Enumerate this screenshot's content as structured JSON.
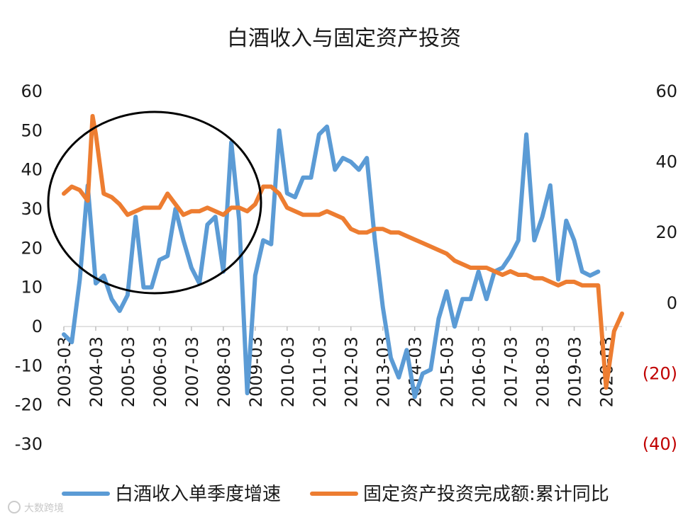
{
  "chart_data": {
    "type": "line",
    "title": "白酒收入与固定资产投资",
    "x_tick_labels": [
      "2003-03",
      "2004-03",
      "2005-03",
      "2006-03",
      "2007-03",
      "2008-03",
      "2009-03",
      "2010-03",
      "2011-03",
      "2012-03",
      "2013-03",
      "2014-03",
      "2015-03",
      "2016-03",
      "2017-03",
      "2018-03",
      "2019-03",
      "2020-03"
    ],
    "y_left": {
      "ticks": [
        "60",
        "50",
        "40",
        "30",
        "20",
        "10",
        "0",
        "-10",
        "-20",
        "-30"
      ],
      "ylim": [
        -30,
        60
      ]
    },
    "y_right": {
      "ticks": [
        "60",
        "40",
        "20",
        "0",
        "(20)",
        "(40)"
      ],
      "ylim": [
        -40,
        60
      ]
    },
    "series": [
      {
        "name": "白酒收入单季度增速",
        "axis": "left",
        "color": "#5b9bd5",
        "points": [
          [
            2003.0,
            -2
          ],
          [
            2003.25,
            -4
          ],
          [
            2003.5,
            12
          ],
          [
            2003.75,
            36
          ],
          [
            2004.0,
            11
          ],
          [
            2004.25,
            13
          ],
          [
            2004.5,
            7
          ],
          [
            2004.75,
            4
          ],
          [
            2005.0,
            8
          ],
          [
            2005.25,
            28
          ],
          [
            2005.5,
            10
          ],
          [
            2005.75,
            10
          ],
          [
            2006.0,
            17
          ],
          [
            2006.25,
            18
          ],
          [
            2006.5,
            30
          ],
          [
            2006.75,
            22
          ],
          [
            2007.0,
            15
          ],
          [
            2007.25,
            11
          ],
          [
            2007.5,
            26
          ],
          [
            2007.75,
            28
          ],
          [
            2008.0,
            14
          ],
          [
            2008.25,
            47
          ],
          [
            2008.5,
            27
          ],
          [
            2008.75,
            -17
          ],
          [
            2009.0,
            13
          ],
          [
            2009.25,
            22
          ],
          [
            2009.5,
            21
          ],
          [
            2009.75,
            50
          ],
          [
            2010.0,
            34
          ],
          [
            2010.25,
            33
          ],
          [
            2010.5,
            38
          ],
          [
            2010.75,
            38
          ],
          [
            2011.0,
            49
          ],
          [
            2011.25,
            51
          ],
          [
            2011.5,
            40
          ],
          [
            2011.75,
            43
          ],
          [
            2012.0,
            42
          ],
          [
            2012.25,
            40
          ],
          [
            2012.5,
            43
          ],
          [
            2012.75,
            22
          ],
          [
            2013.0,
            5
          ],
          [
            2013.25,
            -8
          ],
          [
            2013.5,
            -13
          ],
          [
            2013.75,
            -6
          ],
          [
            2014.0,
            -18
          ],
          [
            2014.25,
            -12
          ],
          [
            2014.5,
            -11
          ],
          [
            2014.75,
            2
          ],
          [
            2015.0,
            9
          ],
          [
            2015.25,
            0
          ],
          [
            2015.5,
            7
          ],
          [
            2015.75,
            7
          ],
          [
            2016.0,
            14
          ],
          [
            2016.25,
            7
          ],
          [
            2016.5,
            14
          ],
          [
            2016.75,
            15
          ],
          [
            2017.0,
            18
          ],
          [
            2017.25,
            22
          ],
          [
            2017.5,
            49
          ],
          [
            2017.75,
            22
          ],
          [
            2018.0,
            28
          ],
          [
            2018.25,
            36
          ],
          [
            2018.5,
            12
          ],
          [
            2018.75,
            27
          ],
          [
            2019.0,
            22
          ],
          [
            2019.25,
            14
          ],
          [
            2019.5,
            13
          ],
          [
            2019.75,
            14
          ]
        ]
      },
      {
        "name": "固定资产投资完成额:累计同比",
        "axis": "right",
        "color": "#ed7d31",
        "points": [
          [
            2003.0,
            31
          ],
          [
            2003.25,
            33
          ],
          [
            2003.5,
            32
          ],
          [
            2003.75,
            29
          ],
          [
            2003.9,
            53
          ],
          [
            2004.0,
            48
          ],
          [
            2004.25,
            31
          ],
          [
            2004.5,
            30
          ],
          [
            2004.75,
            28
          ],
          [
            2005.0,
            25
          ],
          [
            2005.25,
            26
          ],
          [
            2005.5,
            27
          ],
          [
            2005.75,
            27
          ],
          [
            2006.0,
            27
          ],
          [
            2006.25,
            31
          ],
          [
            2006.5,
            28
          ],
          [
            2006.75,
            25
          ],
          [
            2007.0,
            26
          ],
          [
            2007.25,
            26
          ],
          [
            2007.5,
            27
          ],
          [
            2007.75,
            26
          ],
          [
            2008.0,
            25
          ],
          [
            2008.25,
            27
          ],
          [
            2008.5,
            27
          ],
          [
            2008.75,
            26
          ],
          [
            2009.0,
            28
          ],
          [
            2009.25,
            33
          ],
          [
            2009.5,
            33
          ],
          [
            2009.75,
            31
          ],
          [
            2010.0,
            27
          ],
          [
            2010.25,
            26
          ],
          [
            2010.5,
            25
          ],
          [
            2010.75,
            25
          ],
          [
            2011.0,
            25
          ],
          [
            2011.25,
            26
          ],
          [
            2011.5,
            25
          ],
          [
            2011.75,
            24
          ],
          [
            2012.0,
            21
          ],
          [
            2012.25,
            20
          ],
          [
            2012.5,
            20
          ],
          [
            2012.75,
            21
          ],
          [
            2013.0,
            21
          ],
          [
            2013.25,
            20
          ],
          [
            2013.5,
            20
          ],
          [
            2013.75,
            19
          ],
          [
            2014.0,
            18
          ],
          [
            2014.25,
            17
          ],
          [
            2014.5,
            16
          ],
          [
            2014.75,
            15
          ],
          [
            2015.0,
            14
          ],
          [
            2015.25,
            12
          ],
          [
            2015.5,
            11
          ],
          [
            2015.75,
            10
          ],
          [
            2016.0,
            10
          ],
          [
            2016.25,
            10
          ],
          [
            2016.5,
            9
          ],
          [
            2016.75,
            8
          ],
          [
            2017.0,
            9
          ],
          [
            2017.25,
            8
          ],
          [
            2017.5,
            8
          ],
          [
            2017.75,
            7
          ],
          [
            2018.0,
            7
          ],
          [
            2018.25,
            6
          ],
          [
            2018.5,
            5
          ],
          [
            2018.75,
            6
          ],
          [
            2019.0,
            6
          ],
          [
            2019.25,
            5
          ],
          [
            2019.5,
            5
          ],
          [
            2019.75,
            5
          ],
          [
            2020.0,
            -24
          ],
          [
            2020.25,
            -8
          ],
          [
            2020.5,
            -3
          ]
        ]
      }
    ],
    "annotation": "black ellipse highlighting 2003–2008 region",
    "legend_position": "bottom"
  },
  "watermark": "大数跨境"
}
